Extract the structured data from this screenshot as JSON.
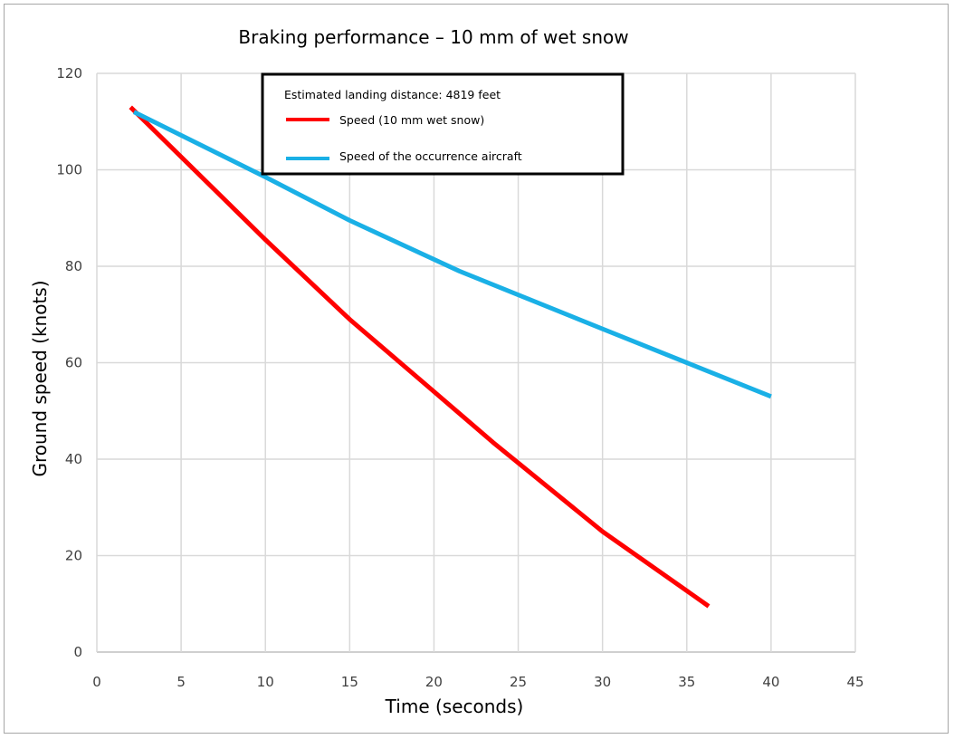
{
  "chart_data": {
    "type": "line",
    "title": "Braking performance – 10 mm of wet snow",
    "xlabel": "Time (seconds)",
    "ylabel": "Ground speed  (knots)",
    "xlim": [
      0,
      45
    ],
    "ylim": [
      0,
      120
    ],
    "xticks": [
      0,
      5,
      10,
      15,
      20,
      25,
      30,
      35,
      40,
      45
    ],
    "yticks": [
      0,
      20,
      40,
      60,
      80,
      100,
      120
    ],
    "grid": true,
    "legend_title": "Estimated landing distance: 4819 feet",
    "legend_position": "top-center",
    "series": [
      {
        "name": "Speed (10 mm wet snow)",
        "color": "#ff0000",
        "points": [
          [
            2,
            113
          ],
          [
            10,
            85.5
          ],
          [
            15,
            69
          ],
          [
            20,
            54
          ],
          [
            23.5,
            43.5
          ],
          [
            30,
            25
          ],
          [
            36.3,
            9.5
          ]
        ]
      },
      {
        "name": "Speed of the occurrence aircraft",
        "color": "#1ab0e6",
        "points": [
          [
            2.2,
            112
          ],
          [
            10,
            98.5
          ],
          [
            15,
            89.5
          ],
          [
            21.5,
            79
          ],
          [
            30,
            67
          ],
          [
            35,
            60
          ],
          [
            40,
            53
          ]
        ]
      }
    ]
  }
}
